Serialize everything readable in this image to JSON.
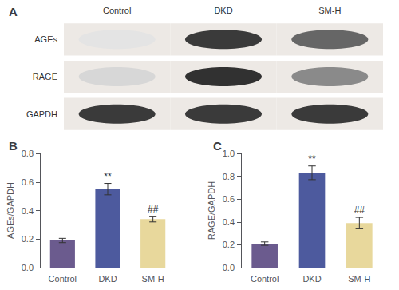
{
  "chart_data": [
    {
      "type": "heatmap",
      "title": "A",
      "x": [
        "Control",
        "DKD",
        "SM-H"
      ],
      "y": [
        "AGEs",
        "RAGE",
        "GAPDH"
      ],
      "cells": [
        [
          0.12,
          0.88,
          0.68
        ],
        [
          0.18,
          0.92,
          0.52
        ],
        [
          0.88,
          0.88,
          0.88
        ]
      ]
    },
    {
      "type": "bar",
      "title": "B",
      "categories": [
        "Control",
        "DKD",
        "SM-H"
      ],
      "values": [
        0.19,
        0.55,
        0.34
      ],
      "errors": [
        0.015,
        0.04,
        0.02
      ],
      "colors": [
        "#6b5b8e",
        "#4d5a9e",
        "#e8d89c"
      ],
      "ylabel": "AGEs/GAPDH",
      "ylim": [
        0.0,
        0.8
      ],
      "yticks": [
        {
          "value": 0.0,
          "label": "0.0"
        },
        0.2,
        0.4,
        0.6,
        0.8
      ],
      "annotations": [
        {
          "category": "DKD",
          "text": "**"
        },
        {
          "category": "SM-H",
          "text": "##"
        }
      ],
      "grid": false
    },
    {
      "type": "bar",
      "title": "C",
      "categories": [
        "Control",
        "DKD",
        "SM-H"
      ],
      "values": [
        0.21,
        0.83,
        0.39
      ],
      "errors": [
        0.015,
        0.06,
        0.05
      ],
      "colors": [
        "#6b5b8e",
        "#4d5a9e",
        "#e8d89c"
      ],
      "ylabel": "RAGE/GAPDH",
      "ylim": [
        0.0,
        1.0
      ],
      "yticks": [
        {
          "value": 0.0,
          "label": "0.0"
        },
        0.2,
        0.4,
        0.6,
        0.8,
        {
          "value": 1.0,
          "label": "1.0"
        }
      ],
      "annotations": [
        {
          "category": "DKD",
          "text": "**"
        },
        {
          "category": "SM-H",
          "text": "##"
        }
      ],
      "grid": false
    }
  ]
}
